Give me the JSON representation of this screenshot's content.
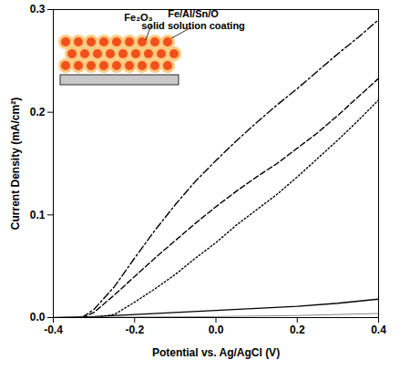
{
  "chart_data": {
    "type": "line",
    "x_label": "Potential vs. Ag/AgCl (V)",
    "y_label": "Current Density (mA/cm²)",
    "xlim": [
      -0.4,
      0.4
    ],
    "ylim": [
      0,
      0.3
    ],
    "xticks": [
      -0.4,
      -0.2,
      {
        "value": 0,
        "label": "0.0"
      },
      0.2,
      0.4
    ],
    "yticks": [
      {
        "value": 0,
        "label": "0.0"
      },
      0.1,
      0.2,
      0.3
    ],
    "annotations": [
      "Fe₂O₃",
      "Fe/Al/Sn/O solid solution coating"
    ],
    "series": [
      {
        "color": "#000000",
        "line_style": "dashdot",
        "x": [
          -0.33,
          -0.3,
          -0.25,
          -0.2,
          -0.15,
          -0.1,
          -0.05,
          0,
          0.05,
          0.1,
          0.15,
          0.2,
          0.25,
          0.3,
          0.35,
          0.4
        ],
        "values": [
          0,
          0.008,
          0.03,
          0.058,
          0.085,
          0.11,
          0.133,
          0.153,
          0.172,
          0.19,
          0.207,
          0.223,
          0.24,
          0.257,
          0.273,
          0.29
        ]
      },
      {
        "color": "#000000",
        "line_style": "dashed",
        "x": [
          -0.33,
          -0.3,
          -0.25,
          -0.2,
          -0.15,
          -0.1,
          -0.05,
          0,
          0.05,
          0.1,
          0.15,
          0.2,
          0.25,
          0.3,
          0.35,
          0.4
        ],
        "values": [
          0,
          0.005,
          0.022,
          0.04,
          0.058,
          0.075,
          0.092,
          0.108,
          0.123,
          0.137,
          0.15,
          0.165,
          0.18,
          0.197,
          0.215,
          0.233
        ]
      },
      {
        "color": "#000000",
        "line_style": "dotted",
        "x": [
          -0.3,
          -0.25,
          -0.2,
          -0.15,
          -0.1,
          -0.05,
          0,
          0.05,
          0.1,
          0.15,
          0.2,
          0.25,
          0.3,
          0.35,
          0.4
        ],
        "values": [
          0,
          0.003,
          0.015,
          0.028,
          0.042,
          0.058,
          0.073,
          0.09,
          0.105,
          0.12,
          0.137,
          0.155,
          0.173,
          0.192,
          0.212
        ]
      },
      {
        "color": "#000000",
        "line_style": "solid",
        "x": [
          -0.4,
          -0.3,
          -0.2,
          -0.1,
          0,
          0.1,
          0.2,
          0.3,
          0.4
        ],
        "values": [
          0,
          0.001,
          0.003,
          0.005,
          0.007,
          0.009,
          0.011,
          0.014,
          0.018
        ]
      },
      {
        "color": "#888888",
        "line_style": "solid",
        "x": [
          -0.4,
          0,
          0.2,
          0.4
        ],
        "values": [
          0,
          0.001,
          0.002,
          0.004
        ]
      }
    ]
  }
}
